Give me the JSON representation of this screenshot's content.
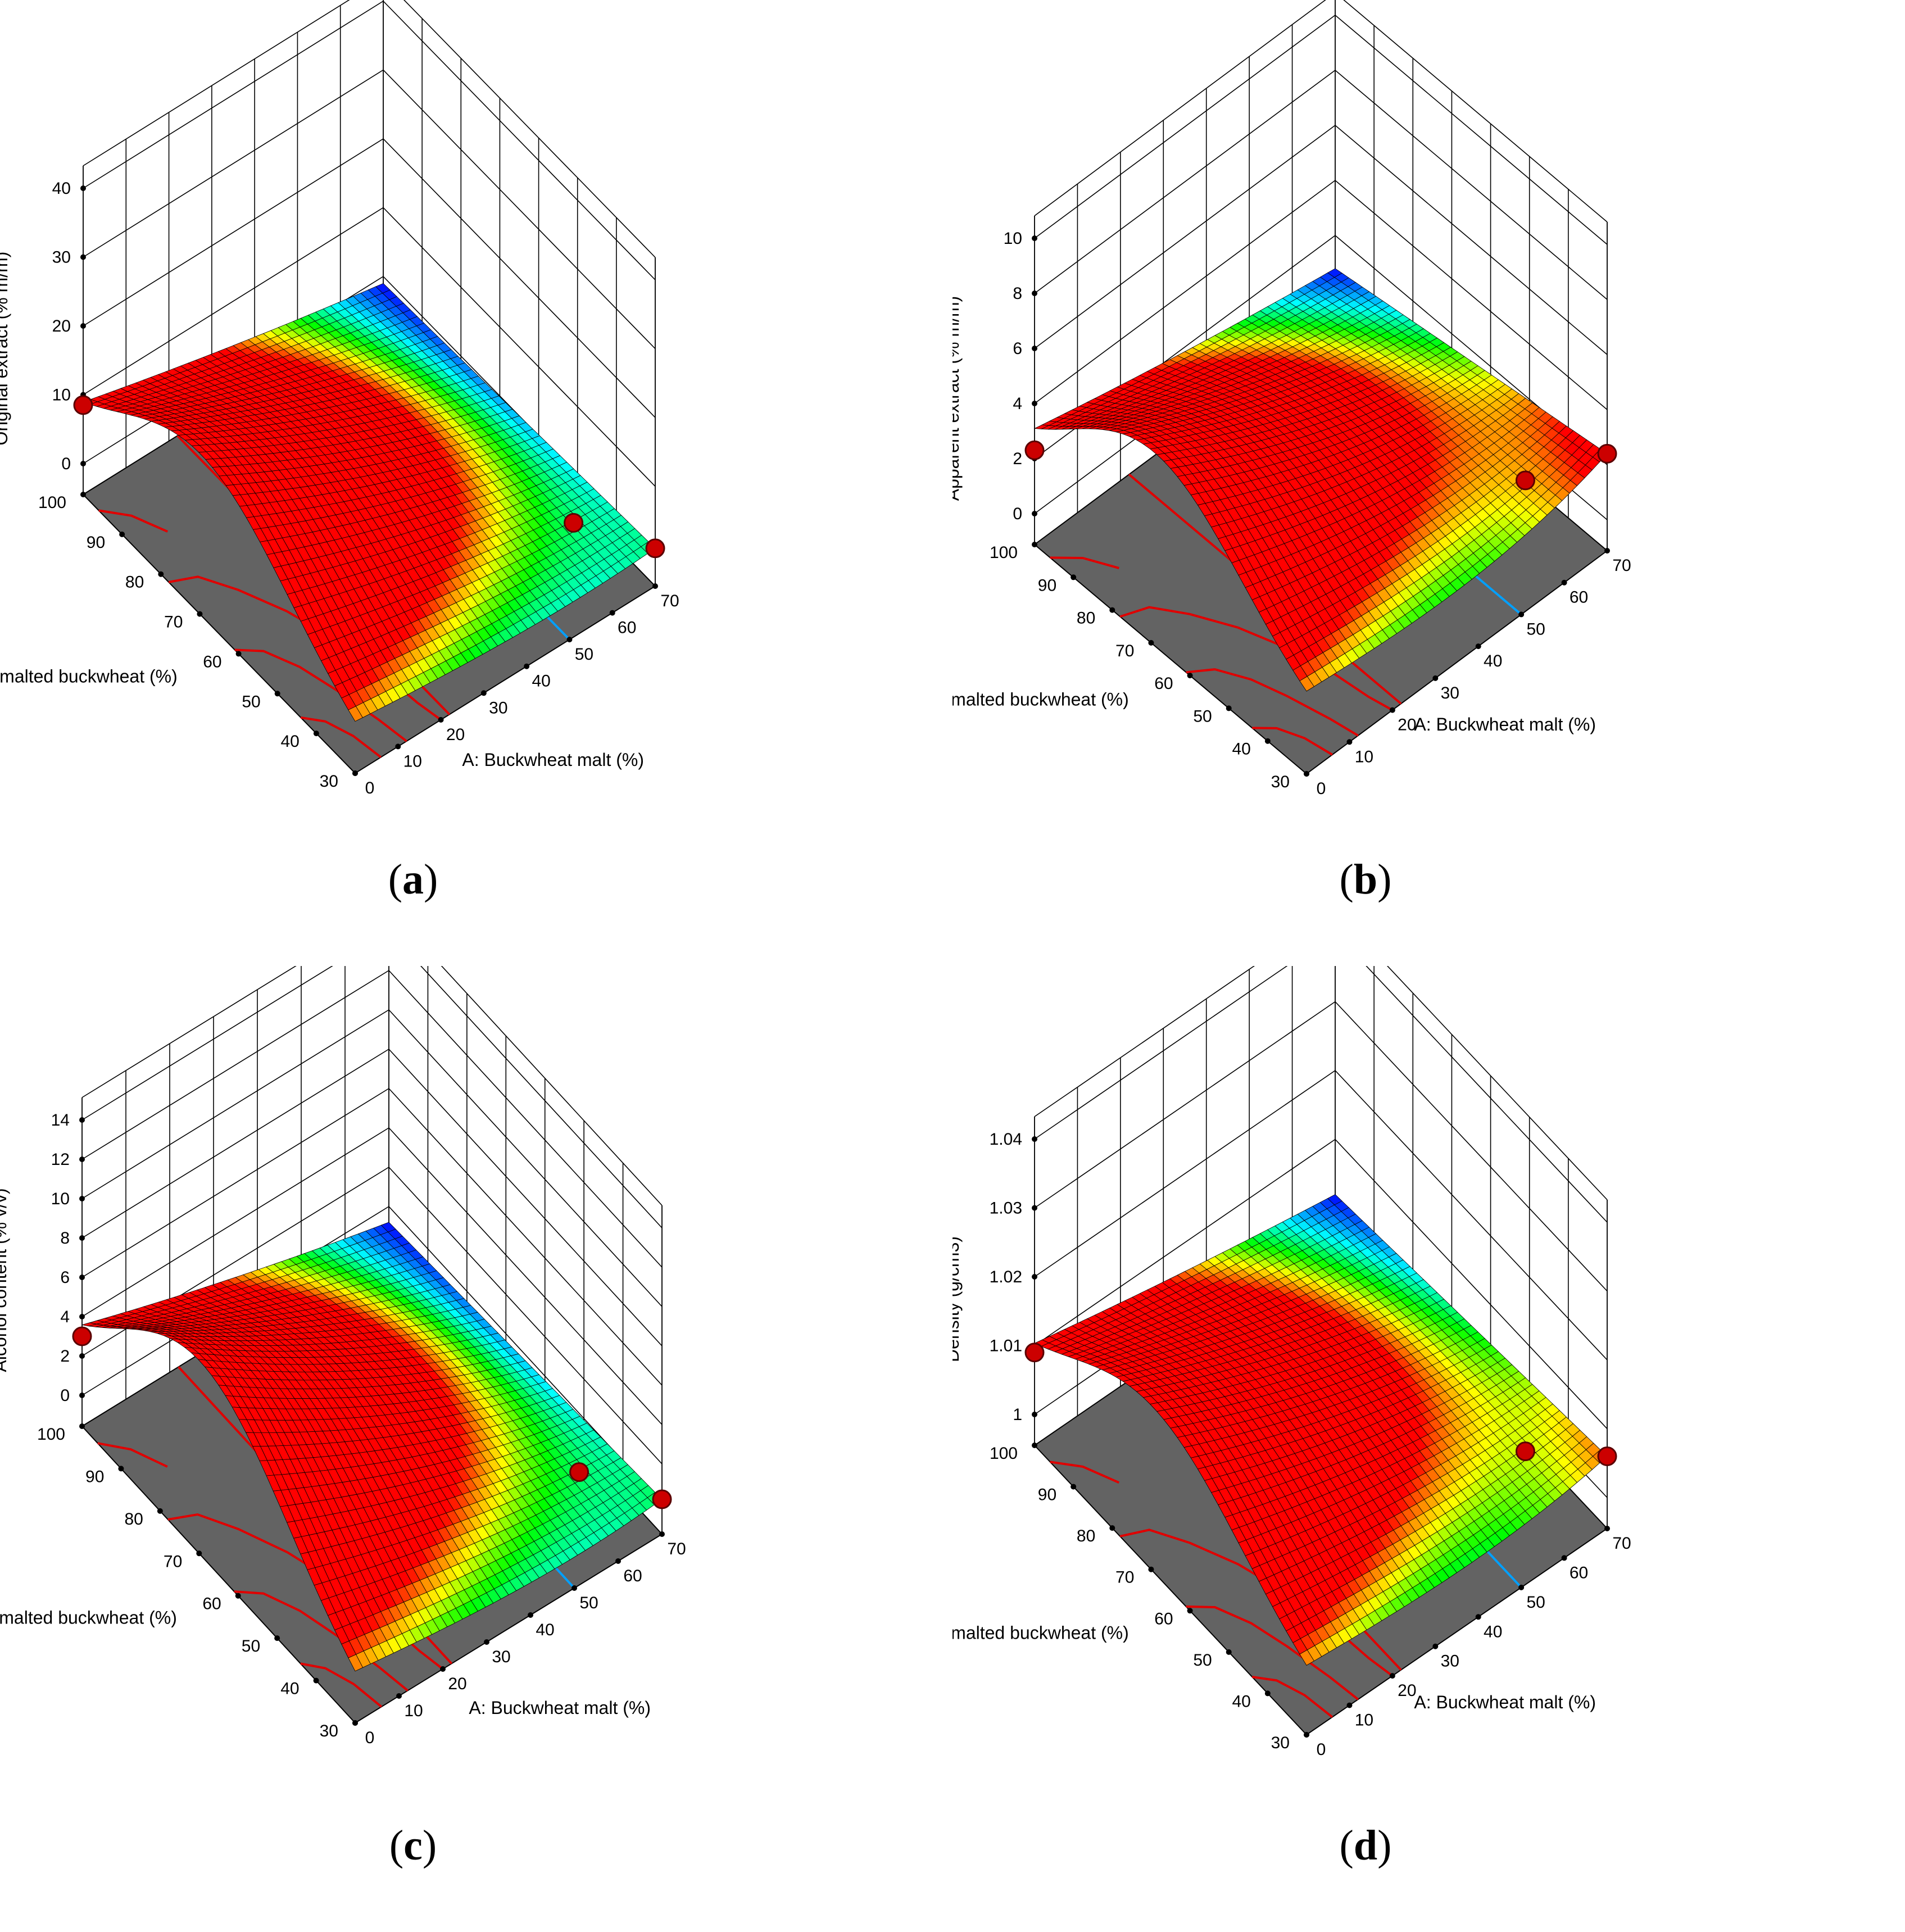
{
  "figure": {
    "chart_data": [
      {
        "type": "surface",
        "panel_label": "a",
        "zlabel": "Original extract (% m/m)",
        "ylabel": "B: Unmalted buckwheat (%)",
        "xlabel": "A: Buckwheat malt (%)",
        "z_ticks": [
          "0",
          "10",
          "20",
          "30",
          "40"
        ],
        "x_ticks": [
          "0",
          "10",
          "20",
          "30",
          "40",
          "50",
          "60",
          "70"
        ],
        "y_ticks": [
          "30",
          "40",
          "50",
          "60",
          "70",
          "80",
          "90",
          "100"
        ],
        "zlim": [
          0,
          40
        ],
        "xlim": [
          0,
          70
        ],
        "ylim": [
          30,
          100
        ],
        "surface": {
          "corner_x0_y100": 8.5,
          "peak": 17,
          "peak_at": {
            "x": 0,
            "y": 70
          },
          "corner_x70_y30": 1,
          "lowest_point": -1
        },
        "design_points": [
          {
            "x": 0,
            "y": 100,
            "z": 8.5
          },
          {
            "x": 70,
            "y": 30,
            "z": 1
          },
          {
            "x": 60,
            "y": 40,
            "z": 2.8
          }
        ],
        "contour_colors": [
          "#e00000",
          "#00a0ff"
        ],
        "colormap": [
          "#0000ff",
          "#00ffff",
          "#00ff00",
          "#ffff00",
          "#ff0000"
        ]
      },
      {
        "type": "surface",
        "panel_label": "b",
        "zlabel": "Apparent extract (% m/m)",
        "ylabel": "B: Unmalted buckwheat (%)",
        "xlabel": "A: Buckwheat malt (%)",
        "z_ticks": [
          "0",
          "2",
          "4",
          "6",
          "8",
          "10"
        ],
        "x_ticks": [
          "0",
          "10",
          "20",
          "30",
          "40",
          "50",
          "60",
          "70"
        ],
        "y_ticks": [
          "30",
          "40",
          "50",
          "60",
          "70",
          "80",
          "90",
          "100"
        ],
        "zlim": [
          0,
          10
        ],
        "xlim": [
          0,
          70
        ],
        "ylim": [
          30,
          100
        ],
        "surface": {
          "corner_x0_y100": 2.3,
          "peak": 5.6,
          "peak_at": {
            "x": 0,
            "y": 70
          },
          "corner_x70_y30": 2.4,
          "lowest_point": 0.8
        },
        "design_points": [
          {
            "x": 0,
            "y": 100,
            "z": 2.3
          },
          {
            "x": 70,
            "y": 30,
            "z": 2.4
          },
          {
            "x": 60,
            "y": 40,
            "z": 1.4
          }
        ],
        "contour_colors": [
          "#e00000",
          "#00a0ff"
        ],
        "colormap": [
          "#0000ff",
          "#00ffff",
          "#00ff00",
          "#ffff00",
          "#ff0000"
        ]
      },
      {
        "type": "surface",
        "panel_label": "c",
        "zlabel": "Alcohol content (% v/v)",
        "ylabel": "B: Unmalted buckwheat (%)",
        "xlabel": "A: Buckwheat malt (%)",
        "z_ticks": [
          "0",
          "2",
          "4",
          "6",
          "8",
          "10",
          "12",
          "14"
        ],
        "x_ticks": [
          "0",
          "10",
          "20",
          "30",
          "40",
          "50",
          "60",
          "70"
        ],
        "y_ticks": [
          "30",
          "40",
          "50",
          "60",
          "70",
          "80",
          "90",
          "100"
        ],
        "zlim": [
          0,
          14
        ],
        "xlim": [
          0,
          70
        ],
        "ylim": [
          30,
          100
        ],
        "surface": {
          "corner_x0_y100": 3,
          "peak": 7.5,
          "peak_at": {
            "x": 0,
            "y": 70
          },
          "corner_x70_y30": 0.2,
          "lowest_point": -0.8
        },
        "design_points": [
          {
            "x": 0,
            "y": 100,
            "z": 3
          },
          {
            "x": 70,
            "y": 30,
            "z": 0.2
          },
          {
            "x": 60,
            "y": 40,
            "z": 0.8
          }
        ],
        "contour_colors": [
          "#e00000",
          "#00a0ff"
        ],
        "colormap": [
          "#0000ff",
          "#00ffff",
          "#00ff00",
          "#ffff00",
          "#ff0000"
        ]
      },
      {
        "type": "surface",
        "panel_label": "d",
        "zlabel": "Density (g/cm3)",
        "ylabel": "B: Unmalted buckwheat (%)",
        "xlabel": "A: Buckwheat malt (%)",
        "z_ticks": [
          "1",
          "1.01",
          "1.02",
          "1.03",
          "1.04"
        ],
        "x_ticks": [
          "0",
          "10",
          "20",
          "30",
          "40",
          "50",
          "60",
          "70"
        ],
        "y_ticks": [
          "30",
          "40",
          "50",
          "60",
          "70",
          "80",
          "90",
          "100"
        ],
        "zlim": [
          1,
          1.04
        ],
        "xlim": [
          0,
          70
        ],
        "ylim": [
          30,
          100
        ],
        "surface": {
          "corner_x0_y100": 1.009,
          "peak": 1.018,
          "peak_at": {
            "x": 0,
            "y": 70
          },
          "corner_x70_y30": 1.006,
          "lowest_point": 1.002
        },
        "design_points": [
          {
            "x": 0,
            "y": 100,
            "z": 1.009
          },
          {
            "x": 70,
            "y": 30,
            "z": 1.006
          },
          {
            "x": 60,
            "y": 40,
            "z": 1.005
          }
        ],
        "contour_colors": [
          "#e00000",
          "#00a0ff"
        ],
        "colormap": [
          "#0000ff",
          "#00ffff",
          "#00ff00",
          "#ffff00",
          "#ff0000"
        ]
      }
    ]
  }
}
